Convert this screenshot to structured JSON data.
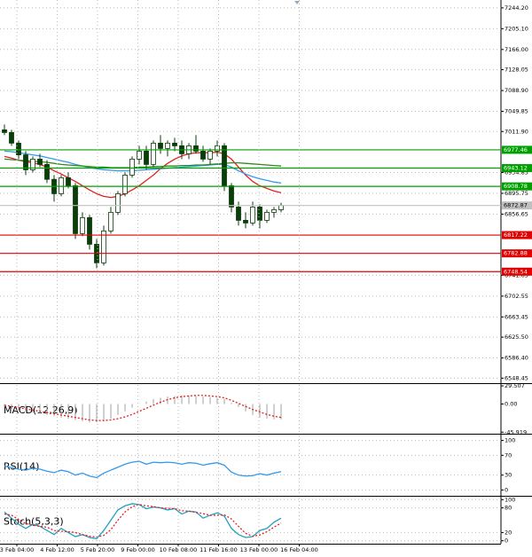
{
  "chart_data": [
    {
      "type": "candlestick",
      "ylim": [
        6539,
        7259
      ],
      "yticks": [
        {
          "value": 7244.2,
          "label": "7244.20"
        },
        {
          "value": 7205.1,
          "label": "7205.10"
        },
        {
          "value": 7166,
          "label": "7166.00"
        },
        7128.05,
        {
          "value": 7088.9,
          "label": "7088.90"
        },
        7049.85,
        {
          "value": 7011.9,
          "label": "7011.90"
        },
        6934.85,
        6895.75,
        6856.65,
        6741.65,
        6702.55,
        6663.45,
        {
          "value": 6625.5,
          "label": "6625.50"
        },
        {
          "value": 6586.4,
          "label": "6586.40"
        },
        6548.45
      ],
      "grid": true,
      "up_color": "#ffffff",
      "down_color": "#0b3d0b",
      "wick_color": "#0b3d0b",
      "candles": [
        {
          "open": 7015,
          "high": 7025,
          "low": 7005,
          "close": 7010
        },
        {
          "open": 7010,
          "high": 7015,
          "low": 6985,
          "close": 6990
        },
        {
          "open": 6990,
          "high": 6995,
          "low": 6960,
          "close": 6968
        },
        {
          "open": 6968,
          "high": 6975,
          "low": 6930,
          "close": 6940
        },
        {
          "open": 6940,
          "high": 6965,
          "low": 6935,
          "close": 6960
        },
        {
          "open": 6960,
          "high": 6970,
          "low": 6945,
          "close": 6950
        },
        {
          "open": 6950,
          "high": 6958,
          "low": 6915,
          "close": 6922
        },
        {
          "open": 6922,
          "high": 6930,
          "low": 6880,
          "close": 6895
        },
        {
          "open": 6895,
          "high": 6930,
          "low": 6890,
          "close": 6925
        },
        {
          "open": 6925,
          "high": 6935,
          "low": 6905,
          "close": 6910
        },
        {
          "open": 6910,
          "high": 6915,
          "low": 6810,
          "close": 6820
        },
        {
          "open": 6820,
          "high": 6860,
          "low": 6815,
          "close": 6850
        },
        {
          "open": 6850,
          "high": 6855,
          "low": 6790,
          "close": 6800
        },
        {
          "open": 6800,
          "high": 6810,
          "low": 6755,
          "close": 6765
        },
        {
          "open": 6765,
          "high": 6835,
          "low": 6760,
          "close": 6825
        },
        {
          "open": 6825,
          "high": 6870,
          "low": 6820,
          "close": 6860
        },
        {
          "open": 6860,
          "high": 6900,
          "low": 6855,
          "close": 6895
        },
        {
          "open": 6895,
          "high": 6935,
          "low": 6890,
          "close": 6930
        },
        {
          "open": 6930,
          "high": 6965,
          "low": 6925,
          "close": 6960
        },
        {
          "open": 6960,
          "high": 6985,
          "low": 6950,
          "close": 6975
        },
        {
          "open": 6975,
          "high": 6985,
          "low": 6940,
          "close": 6950
        },
        {
          "open": 6950,
          "high": 6995,
          "low": 6945,
          "close": 6990
        },
        {
          "open": 6990,
          "high": 7005,
          "low": 6970,
          "close": 6980
        },
        {
          "open": 6980,
          "high": 6995,
          "low": 6965,
          "close": 6990
        },
        {
          "open": 6990,
          "high": 7000,
          "low": 6975,
          "close": 6985
        },
        {
          "open": 6985,
          "high": 6995,
          "low": 6960,
          "close": 6970
        },
        {
          "open": 6970,
          "high": 6990,
          "low": 6960,
          "close": 6985
        },
        {
          "open": 6985,
          "high": 7005,
          "low": 6970,
          "close": 6975
        },
        {
          "open": 6975,
          "high": 6985,
          "low": 6955,
          "close": 6960
        },
        {
          "open": 6960,
          "high": 6980,
          "low": 6950,
          "close": 6975
        },
        {
          "open": 6975,
          "high": 6995,
          "low": 6965,
          "close": 6985
        },
        {
          "open": 6985,
          "high": 6990,
          "low": 6900,
          "close": 6910
        },
        {
          "open": 6910,
          "high": 6915,
          "low": 6860,
          "close": 6870
        },
        {
          "open": 6870,
          "high": 6880,
          "low": 6835,
          "close": 6845
        },
        {
          "open": 6845,
          "high": 6860,
          "low": 6830,
          "close": 6840
        },
        {
          "open": 6840,
          "high": 6880,
          "low": 6835,
          "close": 6870
        },
        {
          "open": 6870,
          "high": 6875,
          "low": 6830,
          "close": 6845
        },
        {
          "open": 6845,
          "high": 6865,
          "low": 6840,
          "close": 6860
        },
        {
          "open": 6860,
          "high": 6870,
          "low": 6850,
          "close": 6865
        },
        {
          "open": 6865,
          "high": 6878,
          "low": 6860,
          "close": 6872.87
        }
      ],
      "series": [
        {
          "color": "#e02020",
          "kind": "line",
          "values": [
            6965,
            6962,
            6958,
            6955,
            6953,
            6950,
            6945,
            6938,
            6932,
            6925,
            6918,
            6910,
            6902,
            6895,
            6890,
            6888,
            6890,
            6895,
            6902,
            6910,
            6920,
            6930,
            6942,
            6952,
            6960,
            6966,
            6970,
            6972,
            6972,
            6972,
            6973,
            6970,
            6960,
            6945,
            6930,
            6918,
            6910,
            6905,
            6900,
            6897
          ]
        },
        {
          "color": "#3399ee",
          "kind": "line",
          "values": [
            6975,
            6974,
            6972,
            6970,
            6968,
            6966,
            6963,
            6960,
            6957,
            6954,
            6950,
            6947,
            6944,
            6942,
            6940,
            6939,
            6938,
            6938,
            6938,
            6939,
            6940,
            6941,
            6942,
            6943,
            6944,
            6945,
            6946,
            6947,
            6948,
            6949,
            6950,
            6950,
            6945,
            6938,
            6932,
            6927,
            6923,
            6920,
            6917,
            6915
          ]
        },
        {
          "color": "#2e8b20",
          "kind": "line",
          "values": [
            6960,
            6959,
            6958,
            6957,
            6956,
            6955,
            6954,
            6952,
            6950,
            6949,
            6948,
            6947,
            6946,
            6945,
            6945,
            6944,
            6944,
            6944,
            6944,
            6945,
            6945,
            6946,
            6946,
            6947,
            6947,
            6948,
            6948,
            6949,
            6949,
            6950,
            6951,
            6952,
            6953,
            6953,
            6952,
            6951,
            6950,
            6949,
            6948,
            6947
          ]
        }
      ],
      "levels": [
        {
          "value": 6977.46,
          "color": "#00a000",
          "label_color": "#ffffff"
        },
        {
          "value": 6943.12,
          "color": "#00a000",
          "label_color": "#ffffff"
        },
        {
          "value": 6908.78,
          "color": "#00a000",
          "label_color": "#ffffff"
        },
        {
          "value": 6872.87,
          "color": "#c0c0c0",
          "label_color": "#000000"
        },
        {
          "value": 6817.22,
          "color": "#e00000",
          "label_color": "#ffffff"
        },
        {
          "value": 6782.88,
          "color": "#e00000",
          "label_color": "#ffffff"
        },
        {
          "value": 6748.54,
          "color": "#e00000",
          "label_color": "#ffffff"
        }
      ]
    },
    {
      "type": "indicator",
      "title": "MACD(12,26,9)",
      "ylim": [
        -47,
        31
      ],
      "yticks": [
        29.507,
        {
          "value": 0,
          "label": "0.00"
        },
        -45.919
      ],
      "grid": false,
      "series": [
        {
          "color": "#a0a0a0",
          "kind": "bar",
          "values": [
            -5,
            -8,
            -10,
            -12,
            -14,
            -16,
            -18,
            -20,
            -22,
            -24,
            -26,
            -28,
            -30,
            -30,
            -28,
            -24,
            -18,
            -12,
            -6,
            0,
            4,
            8,
            10,
            12,
            13,
            14,
            14,
            13,
            12,
            11,
            10,
            8,
            2,
            -5,
            -12,
            -18,
            -22,
            -24,
            -25,
            -25
          ]
        },
        {
          "color": "#e02020",
          "kind": "line",
          "style": "dotted",
          "values": [
            -2,
            -4,
            -6,
            -8,
            -10,
            -12,
            -14,
            -16,
            -18,
            -20,
            -22,
            -24,
            -26,
            -27,
            -27,
            -26,
            -24,
            -21,
            -17,
            -12,
            -7,
            -2,
            3,
            7,
            10,
            12,
            13,
            14,
            14,
            13,
            12,
            10,
            6,
            1,
            -4,
            -9,
            -13,
            -17,
            -20,
            -22
          ]
        }
      ]
    },
    {
      "type": "indicator",
      "title": "RSI(14)",
      "ylim": [
        -10,
        110
      ],
      "yticks": [
        100,
        70,
        30,
        0
      ],
      "grid": true,
      "series": [
        {
          "color": "#3399ee",
          "kind": "line",
          "values": [
            48,
            45,
            42,
            40,
            44,
            42,
            38,
            35,
            40,
            37,
            30,
            34,
            28,
            25,
            34,
            40,
            46,
            52,
            56,
            58,
            52,
            56,
            55,
            56,
            55,
            52,
            55,
            54,
            50,
            53,
            55,
            50,
            36,
            30,
            28,
            29,
            33,
            30,
            34,
            37
          ]
        }
      ]
    },
    {
      "type": "indicator",
      "title": "Stoch(5,3,3)",
      "ylim": [
        -5,
        105
      ],
      "yticks": [
        100,
        80,
        20,
        0
      ],
      "grid": true,
      "series": [
        {
          "color": "#20a0c0",
          "kind": "line",
          "values": [
            70,
            55,
            40,
            30,
            40,
            35,
            25,
            15,
            30,
            20,
            10,
            15,
            8,
            5,
            25,
            50,
            75,
            85,
            90,
            88,
            78,
            82,
            80,
            75,
            78,
            65,
            72,
            70,
            55,
            62,
            68,
            60,
            30,
            15,
            8,
            10,
            25,
            30,
            45,
            55
          ]
        },
        {
          "color": "#e02020",
          "kind": "line",
          "style": "dotted",
          "values": [
            65,
            62,
            52,
            42,
            38,
            35,
            33,
            25,
            23,
            22,
            20,
            15,
            11,
            9,
            13,
            27,
            50,
            70,
            83,
            88,
            85,
            83,
            80,
            79,
            78,
            73,
            72,
            69,
            66,
            62,
            62,
            63,
            53,
            35,
            18,
            11,
            14,
            22,
            33,
            43
          ]
        }
      ],
      "x_labels": [
        "3 Feb 04:00",
        "4 Feb 12:00",
        "5 Feb 20:00",
        "9 Feb 00:00",
        "10 Feb 08:00",
        "11 Feb 16:00",
        "13 Feb 00:00",
        "16 Feb 04:00"
      ]
    }
  ]
}
